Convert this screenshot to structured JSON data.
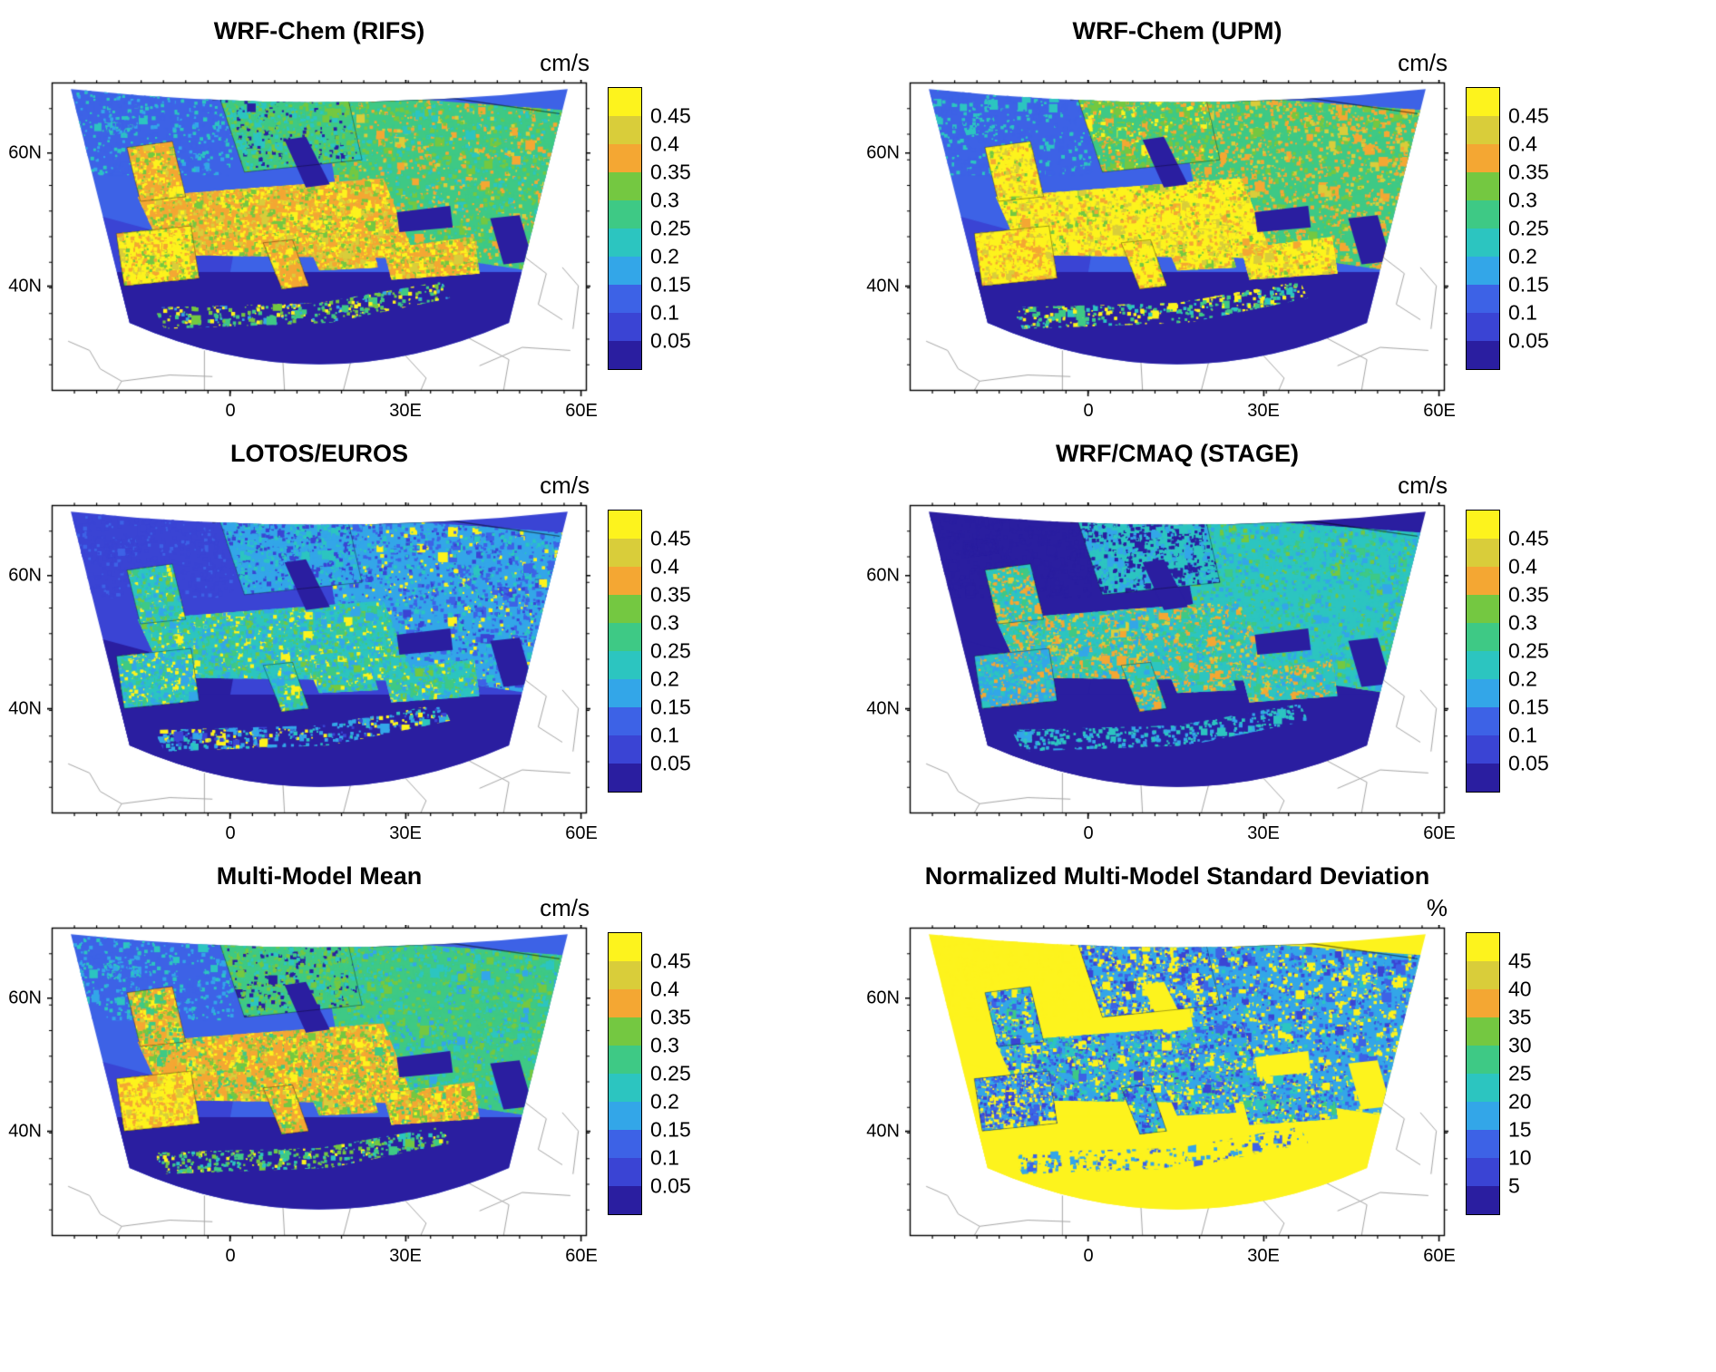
{
  "axes": {
    "lat": [
      "60N",
      "40N"
    ],
    "lon": [
      "0",
      "30E",
      "60E"
    ]
  },
  "palette": [
    "#2a1ea0",
    "#3a44d4",
    "#3d62e6",
    "#33a6e8",
    "#2cc5c0",
    "#3ec985",
    "#74c841",
    "#f4a733",
    "#d9cd3a",
    "#fdf31d"
  ],
  "panels": [
    {
      "title": "WRF-Chem (RIFS)",
      "unit": "cm/s",
      "colorbar_ticks": [
        "0.45",
        "0.4",
        "0.35",
        "0.3",
        "0.25",
        "0.2",
        "0.15",
        "0.1",
        "0.05"
      ],
      "map_style": {
        "ocean": 2,
        "sw": 1,
        "seas": 0,
        "nw": {
          "mix": [
            [
              4,
              2
            ],
            [
              3,
              1
            ],
            [
              2,
              3
            ]
          ]
        },
        "east": {
          "base": 5,
          "mix": [
            [
              5,
              4
            ],
            [
              6,
              3
            ],
            [
              7,
              2
            ],
            [
              4,
              2
            ],
            [
              8,
              1
            ]
          ]
        },
        "scand": {
          "base": 5,
          "mix": [
            [
              5,
              3
            ],
            [
              6,
              2
            ],
            [
              4,
              2
            ],
            [
              0,
              1
            ]
          ]
        },
        "land": {
          "base": 7,
          "mix": [
            [
              7,
              3
            ],
            [
              9,
              3
            ],
            [
              8,
              2
            ],
            [
              6,
              2
            ]
          ]
        },
        "iberia": {
          "base": 9,
          "mix": [
            [
              9,
              4
            ],
            [
              7,
              2
            ],
            [
              8,
              1
            ],
            [
              6,
              1
            ]
          ]
        },
        "africa": {
          "mix": [
            [
              9,
              2
            ],
            [
              6,
              2
            ],
            [
              5,
              2
            ],
            [
              3,
              1
            ]
          ]
        }
      }
    },
    {
      "title": "WRF-Chem (UPM)",
      "unit": "cm/s",
      "colorbar_ticks": [
        "0.45",
        "0.4",
        "0.35",
        "0.3",
        "0.25",
        "0.2",
        "0.15",
        "0.1",
        "0.05"
      ],
      "map_style": {
        "ocean": 2,
        "sw": 1,
        "seas": 0,
        "nw": {
          "mix": [
            [
              4,
              2
            ],
            [
              2,
              3
            ]
          ]
        },
        "east": {
          "base": 5,
          "mix": [
            [
              7,
              4
            ],
            [
              5,
              3
            ],
            [
              8,
              2
            ],
            [
              6,
              2
            ]
          ]
        },
        "scand": {
          "base": 5,
          "mix": [
            [
              6,
              3
            ],
            [
              5,
              2
            ],
            [
              7,
              2
            ],
            [
              9,
              1
            ]
          ]
        },
        "land": {
          "base": 9,
          "mix": [
            [
              9,
              5
            ],
            [
              8,
              2
            ],
            [
              7,
              2
            ],
            [
              6,
              1
            ]
          ]
        },
        "iberia": {
          "base": 9,
          "mix": [
            [
              9,
              4
            ],
            [
              7,
              2
            ],
            [
              8,
              1
            ]
          ]
        },
        "africa": {
          "mix": [
            [
              9,
              2
            ],
            [
              5,
              2
            ],
            [
              4,
              1
            ]
          ]
        }
      }
    },
    {
      "title": "LOTOS/EUROS",
      "unit": "cm/s",
      "colorbar_ticks": [
        "0.45",
        "0.4",
        "0.35",
        "0.3",
        "0.25",
        "0.2",
        "0.15",
        "0.1",
        "0.05"
      ],
      "map_style": {
        "ocean": 1,
        "sw": 0,
        "seas": 0,
        "nw": {
          "mix": [
            [
              1,
              4
            ],
            [
              2,
              1
            ]
          ]
        },
        "east": {
          "base": 3,
          "mix": [
            [
              3,
              3
            ],
            [
              2,
              3
            ],
            [
              4,
              2
            ],
            [
              1,
              1
            ],
            [
              9,
              1
            ]
          ]
        },
        "scand": {
          "base": 3,
          "mix": [
            [
              3,
              3
            ],
            [
              4,
              2
            ],
            [
              1,
              2
            ]
          ]
        },
        "land": {
          "base": 4,
          "mix": [
            [
              4,
              3
            ],
            [
              5,
              2
            ],
            [
              3,
              2
            ],
            [
              6,
              1
            ],
            [
              9,
              1
            ]
          ]
        },
        "iberia": {
          "base": 4,
          "mix": [
            [
              4,
              2
            ],
            [
              3,
              2
            ],
            [
              9,
              1
            ],
            [
              5,
              1
            ]
          ]
        },
        "africa": {
          "mix": [
            [
              3,
              2
            ],
            [
              9,
              1
            ],
            [
              4,
              1
            ],
            [
              1,
              1
            ]
          ]
        }
      }
    },
    {
      "title": "WRF/CMAQ (STAGE)",
      "unit": "cm/s",
      "colorbar_ticks": [
        "0.45",
        "0.4",
        "0.35",
        "0.3",
        "0.25",
        "0.2",
        "0.15",
        "0.1",
        "0.05"
      ],
      "map_style": {
        "ocean": 0,
        "sw": 0,
        "seas": 0,
        "nw": {
          "mix": [
            [
              0,
              1
            ]
          ]
        },
        "east": {
          "base": 4,
          "mix": [
            [
              4,
              3
            ],
            [
              5,
              2
            ],
            [
              3,
              2
            ],
            [
              6,
              1
            ]
          ]
        },
        "scand": {
          "base": 4,
          "mix": [
            [
              4,
              2
            ],
            [
              3,
              2
            ],
            [
              0,
              2
            ]
          ]
        },
        "land": {
          "base": 4,
          "mix": [
            [
              4,
              3
            ],
            [
              5,
              2
            ],
            [
              7,
              2
            ],
            [
              8,
              1
            ],
            [
              3,
              1
            ]
          ]
        },
        "iberia": {
          "base": 3,
          "mix": [
            [
              3,
              2
            ],
            [
              4,
              2
            ],
            [
              7,
              1
            ]
          ]
        },
        "africa": {
          "mix": [
            [
              4,
              3
            ],
            [
              3,
              2
            ]
          ]
        }
      }
    },
    {
      "title": "Multi-Model Mean",
      "unit": "cm/s",
      "colorbar_ticks": [
        "0.45",
        "0.4",
        "0.35",
        "0.3",
        "0.25",
        "0.2",
        "0.15",
        "0.1",
        "0.05"
      ],
      "map_style": {
        "ocean": 2,
        "sw": 1,
        "seas": 0,
        "nw": {
          "mix": [
            [
              4,
              2
            ],
            [
              3,
              2
            ],
            [
              2,
              2
            ]
          ]
        },
        "east": {
          "base": 5,
          "mix": [
            [
              5,
              3
            ],
            [
              4,
              2
            ],
            [
              6,
              2
            ],
            [
              3,
              1
            ]
          ]
        },
        "scand": {
          "base": 5,
          "mix": [
            [
              5,
              3
            ],
            [
              6,
              2
            ],
            [
              4,
              1
            ],
            [
              0,
              1
            ]
          ]
        },
        "land": {
          "base": 7,
          "mix": [
            [
              7,
              3
            ],
            [
              9,
              2
            ],
            [
              6,
              2
            ],
            [
              8,
              1
            ],
            [
              5,
              1
            ]
          ]
        },
        "iberia": {
          "base": 9,
          "mix": [
            [
              9,
              3
            ],
            [
              7,
              2
            ],
            [
              8,
              1
            ]
          ]
        },
        "africa": {
          "mix": [
            [
              9,
              1
            ],
            [
              6,
              2
            ],
            [
              5,
              2
            ],
            [
              4,
              1
            ]
          ]
        }
      }
    },
    {
      "title": "Normalized Multi-Model Standard Deviation",
      "unit": "%",
      "colorbar_ticks": [
        "45",
        "40",
        "35",
        "30",
        "25",
        "20",
        "15",
        "10",
        "5"
      ],
      "map_style": {
        "ocean": 9,
        "sw": 9,
        "seas": 9,
        "nw": {
          "mix": [
            [
              9,
              1
            ]
          ]
        },
        "east": {
          "base": 3,
          "mix": [
            [
              3,
              2
            ],
            [
              2,
              2
            ],
            [
              9,
              3
            ],
            [
              4,
              1
            ],
            [
              1,
              1
            ]
          ]
        },
        "scand": {
          "base": 3,
          "mix": [
            [
              2,
              2
            ],
            [
              3,
              2
            ],
            [
              9,
              2
            ],
            [
              1,
              1
            ]
          ]
        },
        "land": {
          "base": 3,
          "mix": [
            [
              3,
              3
            ],
            [
              2,
              2
            ],
            [
              4,
              2
            ],
            [
              9,
              2
            ],
            [
              1,
              1
            ],
            [
              5,
              1
            ]
          ]
        },
        "iberia": {
          "base": 3,
          "mix": [
            [
              3,
              2
            ],
            [
              2,
              2
            ],
            [
              9,
              2
            ],
            [
              1,
              1
            ]
          ]
        },
        "africa": {
          "mix": [
            [
              9,
              3
            ],
            [
              3,
              2
            ],
            [
              2,
              1
            ]
          ]
        }
      }
    }
  ],
  "chart_data": {
    "type": "heatmap",
    "subtype": "geographic-model-map-grid",
    "rows": 3,
    "cols": 2,
    "region": "Europe (curved Lambert-conformal model domain, approx 25N-75N, 25W-60E)",
    "x_tick_labels": [
      "0",
      "30E",
      "60E"
    ],
    "y_tick_labels": [
      "60N",
      "40N"
    ],
    "colorbar_levels_cm_s": [
      0.05,
      0.1,
      0.15,
      0.2,
      0.25,
      0.3,
      0.35,
      0.4,
      0.45
    ],
    "colorbar_levels_percent": [
      5,
      10,
      15,
      20,
      25,
      30,
      35,
      40,
      45
    ],
    "color_scale": "10-step dark-navy to blue to cyan to teal to green to orange to yellow",
    "panels": [
      {
        "title": "WRF-Chem (RIFS)",
        "unit": "cm/s",
        "pattern": "0.35-0.45+ over continental Europe and Iberia with yellow/orange mottling, 0.2-0.3 greens over Scandinavia and Russia, ~0.1-0.15 blue over the Atlantic, <0.05 navy over the Mediterranean, Black Sea and interior North Africa"
      },
      {
        "title": "WRF-Chem (UPM)",
        "unit": "cm/s",
        "pattern": "highest field: 0.45+ yellow over western/central Europe and Iberia, broad 0.35-0.4 orange band across eastern Europe and western Russia, ~0.1-0.15 blue Atlantic, <0.05 navy Mediterranean"
      },
      {
        "title": "LOTOS/EUROS",
        "unit": "cm/s",
        "pattern": "generally low: 0.2-0.3 teal/green over land with scattered yellow spots, 0.05-0.15 blues over northern ocean, <0.05 navy over the southwest Atlantic, Mediterranean and southeastern domain"
      },
      {
        "title": "WRF/CMAQ (STAGE)",
        "unit": "cm/s",
        "pattern": "0.2-0.3 teal/green over land with orange patches over the UK and France, <0.05 navy over the entire Atlantic, Mediterranean and far north"
      },
      {
        "title": "Multi-Model Mean",
        "unit": "cm/s",
        "pattern": "0.35-0.45 orange/yellow over western Europe and Iberia, 0.25-0.3 greens eastward into Russia, ~0.1-0.15 blue Atlantic, <0.05 navy Mediterranean, Black Sea and North Africa"
      },
      {
        "title": "Normalized Multi-Model Standard Deviation",
        "unit": "%",
        "pattern": "45%+ yellow over all oceans, seas and North Africa; mostly 10-25% blues/cyans over continental land with scattered 45%+ yellow speckles"
      }
    ]
  }
}
